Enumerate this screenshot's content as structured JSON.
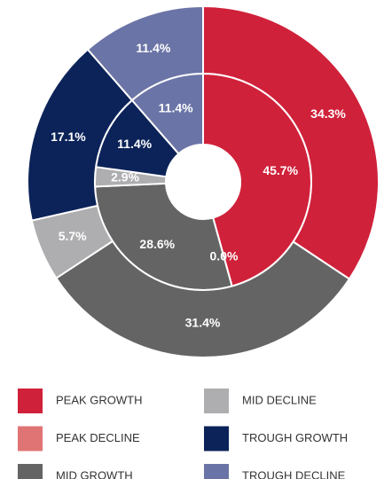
{
  "chart_data": {
    "type": "donut",
    "categories": [
      "PEAK GROWTH",
      "PEAK DECLINE",
      "MID GROWTH",
      "MID DECLINE",
      "TROUGH GROWTH",
      "TROUGH DECLINE"
    ],
    "colors": [
      "#d0213a",
      "#e07474",
      "#646464",
      "#aeaeb0",
      "#0c2359",
      "#6b74a6"
    ],
    "rings": [
      {
        "values": [
          45.7,
          0.0,
          28.6,
          2.9,
          11.4,
          11.4
        ],
        "value_labels": [
          "45.7%",
          "0.0%",
          "28.6%",
          "2.9%",
          "11.4%",
          "11.4%"
        ]
      },
      {
        "values": [
          34.3,
          0,
          31.4,
          5.7,
          17.1,
          11.4
        ],
        "value_labels": [
          "34.3%",
          null,
          "31.4%",
          "5.7%",
          "17.1%",
          "11.4%"
        ]
      }
    ]
  }
}
